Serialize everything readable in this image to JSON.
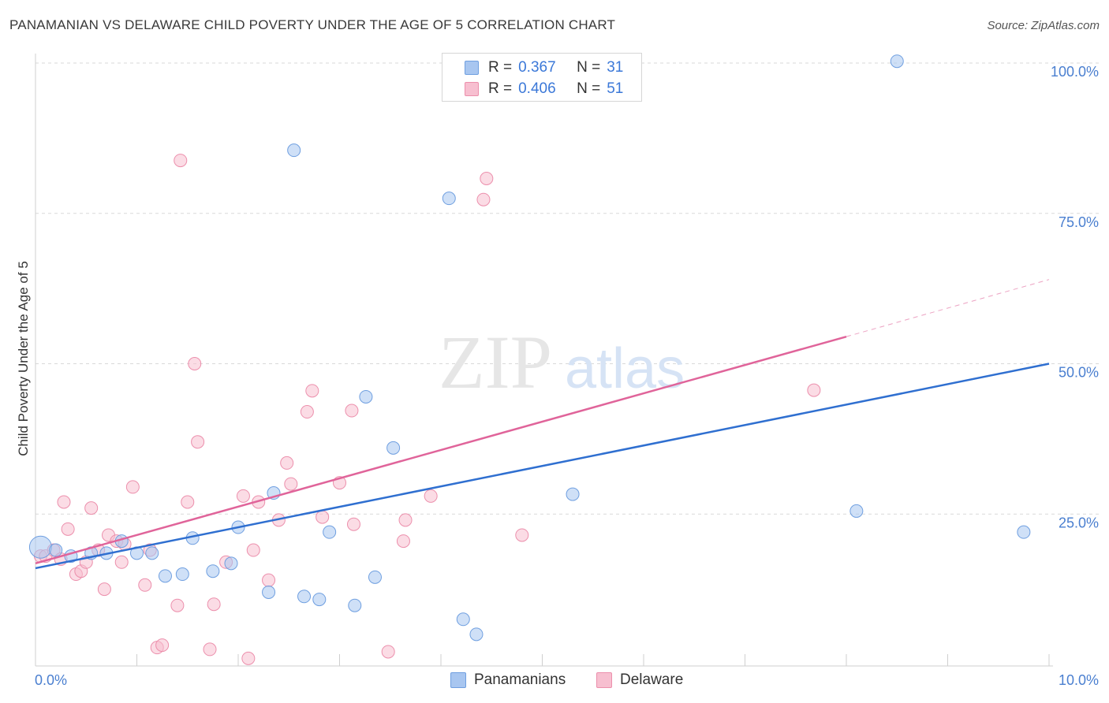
{
  "header": {
    "title": "PANAMANIAN VS DELAWARE CHILD POVERTY UNDER THE AGE OF 5 CORRELATION CHART",
    "source": "Source: ZipAtlas.com"
  },
  "watermark": {
    "zip": "ZIP",
    "atlas": "atlas"
  },
  "legend_top": {
    "rows": [
      {
        "r_label": "R =",
        "r_value": "0.367",
        "n_label": "N =",
        "n_value": "31",
        "color": "#a8c6f0",
        "border": "#6f9fe0"
      },
      {
        "r_label": "R =",
        "r_value": "0.406",
        "n_label": "N =",
        "n_value": "51",
        "color": "#f7bfd0",
        "border": "#ec8fac"
      }
    ]
  },
  "legend_bottom": {
    "items": [
      {
        "label": "Panamanians",
        "color": "#a8c6f0",
        "border": "#6f9fe0"
      },
      {
        "label": "Delaware",
        "color": "#f7bfd0",
        "border": "#ec8fac"
      }
    ]
  },
  "chart_data": {
    "type": "scatter",
    "title": "PANAMANIAN VS DELAWARE CHILD POVERTY UNDER THE AGE OF 5 CORRELATION CHART",
    "xlabel": "",
    "ylabel": "Child Poverty Under the Age of 5",
    "xlim": [
      0,
      10
    ],
    "ylim": [
      0,
      100
    ],
    "x_tick_labels": {
      "min": "0.0%",
      "max": "10.0%"
    },
    "y_ticks": [
      {
        "value": 100,
        "label": "100.0%"
      },
      {
        "value": 75,
        "label": "75.0%"
      },
      {
        "value": 50,
        "label": "50.0%"
      },
      {
        "value": 25,
        "label": "25.0%"
      }
    ],
    "grid": true,
    "colors": {
      "panamanians_fill": "#a8c6f0",
      "panamanians_stroke": "#6f9fe0",
      "panamanians_line": "#2f6fd0",
      "delaware_fill": "#f7bfd0",
      "delaware_stroke": "#ec8fac",
      "delaware_line": "#e0649a",
      "grid": "#d9d9d9",
      "tick": "#4a7fd0"
    },
    "series": [
      {
        "name": "Panamanians",
        "points": [
          [
            0.05,
            19.5
          ],
          [
            0.2,
            19
          ],
          [
            0.35,
            18
          ],
          [
            0.55,
            18.5
          ],
          [
            0.7,
            18.5
          ],
          [
            0.85,
            20.5
          ],
          [
            1.0,
            18.5
          ],
          [
            1.15,
            18.5
          ],
          [
            1.28,
            14.7
          ],
          [
            1.45,
            15
          ],
          [
            1.55,
            21
          ],
          [
            1.75,
            15.5
          ],
          [
            1.93,
            16.8
          ],
          [
            2.0,
            22.8
          ],
          [
            2.3,
            12
          ],
          [
            2.35,
            28.5
          ],
          [
            2.55,
            85.5
          ],
          [
            2.65,
            11.3
          ],
          [
            2.8,
            10.8
          ],
          [
            2.9,
            22
          ],
          [
            3.15,
            9.8
          ],
          [
            3.26,
            44.5
          ],
          [
            3.35,
            14.5
          ],
          [
            3.53,
            36
          ],
          [
            4.08,
            77.5
          ],
          [
            4.22,
            7.5
          ],
          [
            4.35,
            5
          ],
          [
            5.3,
            28.3
          ],
          [
            8.1,
            25.5
          ],
          [
            8.5,
            100.3
          ],
          [
            9.75,
            22
          ]
        ],
        "trend": {
          "x": [
            0,
            10
          ],
          "y": [
            16,
            50
          ]
        }
      },
      {
        "name": "Delaware",
        "points": [
          [
            0.05,
            18
          ],
          [
            0.1,
            18
          ],
          [
            0.18,
            19
          ],
          [
            0.25,
            17.5
          ],
          [
            0.28,
            27
          ],
          [
            0.32,
            22.5
          ],
          [
            0.4,
            15
          ],
          [
            0.45,
            15.5
          ],
          [
            0.5,
            17
          ],
          [
            0.55,
            26
          ],
          [
            0.62,
            19
          ],
          [
            0.68,
            12.5
          ],
          [
            0.72,
            21.5
          ],
          [
            0.8,
            20.5
          ],
          [
            0.85,
            17
          ],
          [
            0.88,
            20
          ],
          [
            0.96,
            29.5
          ],
          [
            1.08,
            13.2
          ],
          [
            1.13,
            19
          ],
          [
            1.2,
            2.8
          ],
          [
            1.25,
            3.2
          ],
          [
            1.4,
            9.8
          ],
          [
            1.43,
            83.8
          ],
          [
            1.5,
            27
          ],
          [
            1.57,
            50
          ],
          [
            1.6,
            37
          ],
          [
            1.72,
            2.5
          ],
          [
            1.76,
            10
          ],
          [
            1.88,
            17
          ],
          [
            2.05,
            28
          ],
          [
            2.1,
            1
          ],
          [
            2.15,
            19
          ],
          [
            2.2,
            27
          ],
          [
            2.3,
            14
          ],
          [
            2.4,
            24
          ],
          [
            2.48,
            33.5
          ],
          [
            2.52,
            30
          ],
          [
            2.68,
            42
          ],
          [
            2.73,
            45.5
          ],
          [
            2.83,
            24.5
          ],
          [
            3.0,
            30.2
          ],
          [
            3.12,
            42.2
          ],
          [
            3.14,
            23.3
          ],
          [
            3.48,
            2.1
          ],
          [
            3.63,
            20.5
          ],
          [
            3.65,
            24
          ],
          [
            3.9,
            28
          ],
          [
            4.42,
            77.3
          ],
          [
            4.45,
            80.8
          ],
          [
            4.8,
            21.5
          ],
          [
            7.68,
            45.6
          ]
        ],
        "trend": {
          "x": [
            0,
            8.0
          ],
          "y": [
            16.8,
            54.5
          ]
        },
        "trend_dashed": {
          "x": [
            8.0,
            10
          ],
          "y": [
            54.5,
            64
          ]
        }
      }
    ]
  }
}
